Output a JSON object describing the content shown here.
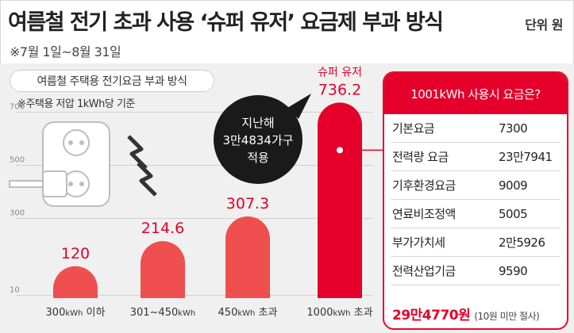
{
  "header": {
    "title": "여름철 전기 초과 사용 ‘슈퍼 유저’ 요금제 부과 방식",
    "unit": "단위 원",
    "period": "※7월 1일~8월 31일"
  },
  "chart_header": {
    "label": "여름철 주택용 전기요금 부과 방식",
    "basis": "※주택용 저압 1kWh당 기준"
  },
  "callout": {
    "lines": [
      "지난해",
      "3만4834가구",
      "적용"
    ]
  },
  "chart_data": {
    "type": "bar",
    "title": "여름철 주택용 전기요금 부과 방식",
    "ylim": [
      0,
      800
    ],
    "y_ticks": [
      10,
      300,
      500,
      700
    ],
    "categories": [
      {
        "prefix": "300",
        "unit": "kWh",
        "suffix": " 이하"
      },
      {
        "prefix": "301~450",
        "unit": "kWh",
        "suffix": ""
      },
      {
        "prefix": "450",
        "unit": "kWh",
        "suffix": " 초과"
      },
      {
        "prefix": "1000",
        "unit": "kWh",
        "suffix": " 초과"
      }
    ],
    "values": [
      120,
      214.6,
      307.3,
      736.2
    ],
    "value_labels": [
      "120",
      "214.6",
      "307.3",
      "736.2"
    ],
    "highlight_label": "슈퍼 유저",
    "colors": {
      "bar": "#ef4f4f",
      "highlight": "#e4002b",
      "value": "#e4002b"
    }
  },
  "cost_card": {
    "title": "1001kWh 사용시 요금은?",
    "rows": [
      {
        "label": "기본요금",
        "value": "7300"
      },
      {
        "label": "전력량 요금",
        "value": "23만7941"
      },
      {
        "label": "기후환경요금",
        "value": "9009"
      },
      {
        "label": "연료비조정액",
        "value": "5005"
      },
      {
        "label": "부가가치세",
        "value": "2만5926"
      },
      {
        "label": "전력산업기금",
        "value": "9590"
      }
    ],
    "total": "29만4770원",
    "total_note": "(10원 미만 절사)"
  }
}
